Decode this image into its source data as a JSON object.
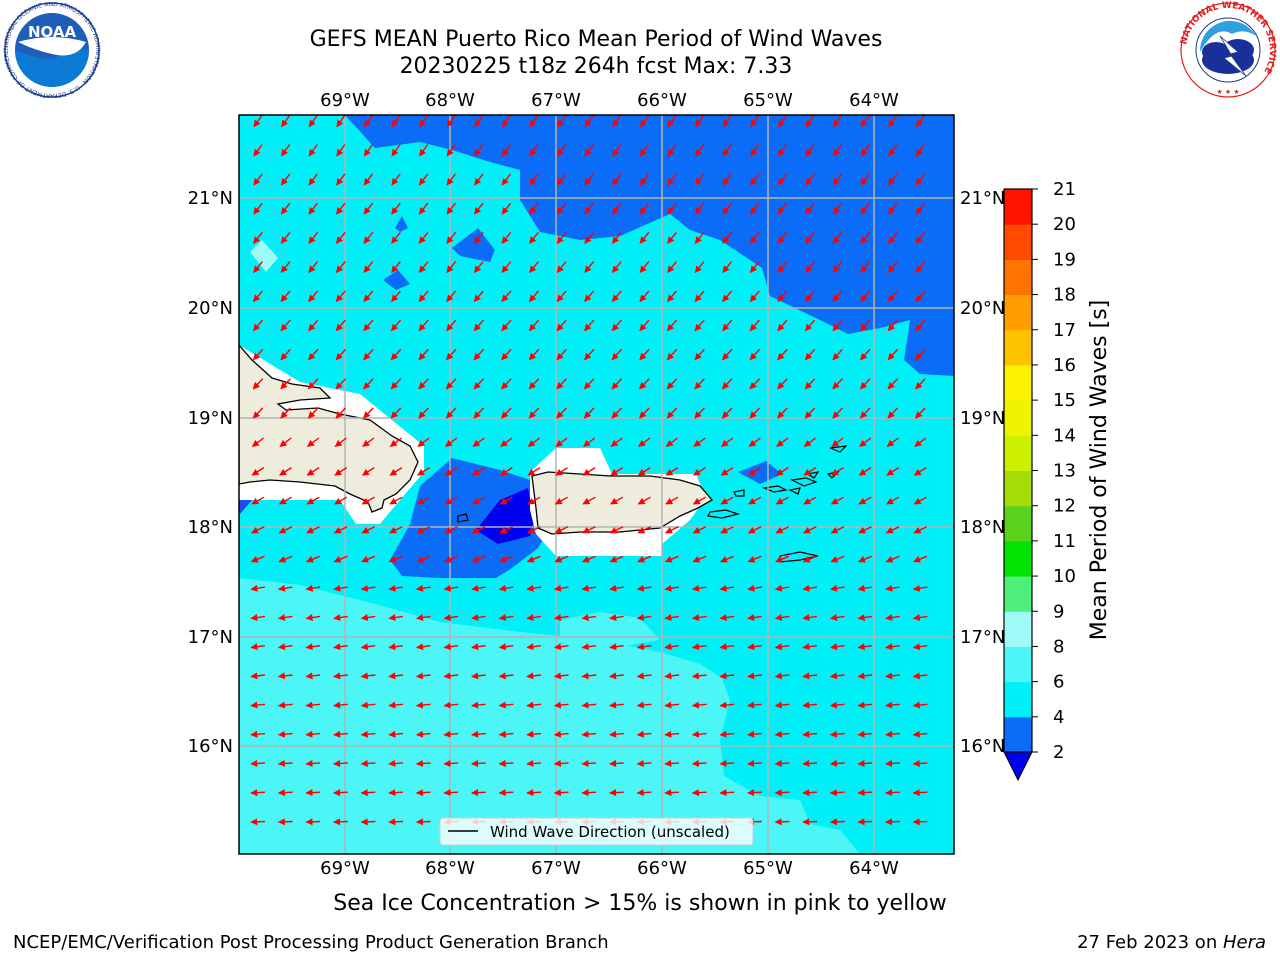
{
  "header": {
    "title": "GEFS MEAN Puerto Rico Mean Period of Wind Waves",
    "subtitle": "20230225 t18z 264h fcst   Max: 7.33"
  },
  "map": {
    "lon_ticks": [
      "69°W",
      "68°W",
      "67°W",
      "66°W",
      "65°W",
      "64°W"
    ],
    "lat_ticks": [
      "21°N",
      "20°N",
      "19°N",
      "18°N",
      "17°N",
      "16°N"
    ],
    "legend_label": "Wind Wave Direction (unscaled)",
    "vector_color": "#ff0000",
    "land_color": "#eeecdc"
  },
  "colorbar": {
    "label": "Mean Period of Wind Waves [s]",
    "ticks": [
      "2",
      "4",
      "6",
      "8",
      "9",
      "10",
      "11",
      "12",
      "13",
      "14",
      "15",
      "16",
      "17",
      "18",
      "19",
      "20",
      "21"
    ],
    "colors": [
      "#0a6cf7",
      "#00f0f7",
      "#4cf6f6",
      "#9efbf8",
      "#4ef07b",
      "#00e400",
      "#5cd21c",
      "#a6dc06",
      "#ccf000",
      "#eef400",
      "#fff200",
      "#ffc200",
      "#ff9c00",
      "#ff7300",
      "#ff4a00",
      "#ff1400"
    ],
    "under_color": "#0000f0"
  },
  "footer": {
    "note": "Sea Ice Concentration > 15% is shown in pink to yellow",
    "left": "NCEP/EMC/Verification Post Processing Product Generation Branch",
    "date": "27 Feb 2023 on ",
    "machine": "Hera"
  },
  "logos": {
    "noaa": "NOAA",
    "noaa_ring": "NATIONAL OCEANIC AND ATMOSPHERIC ADMINISTRATION · U.S. DEPARTMENT OF COMMERCE",
    "nws_ring": "NATIONAL WEATHER SERVICE"
  }
}
